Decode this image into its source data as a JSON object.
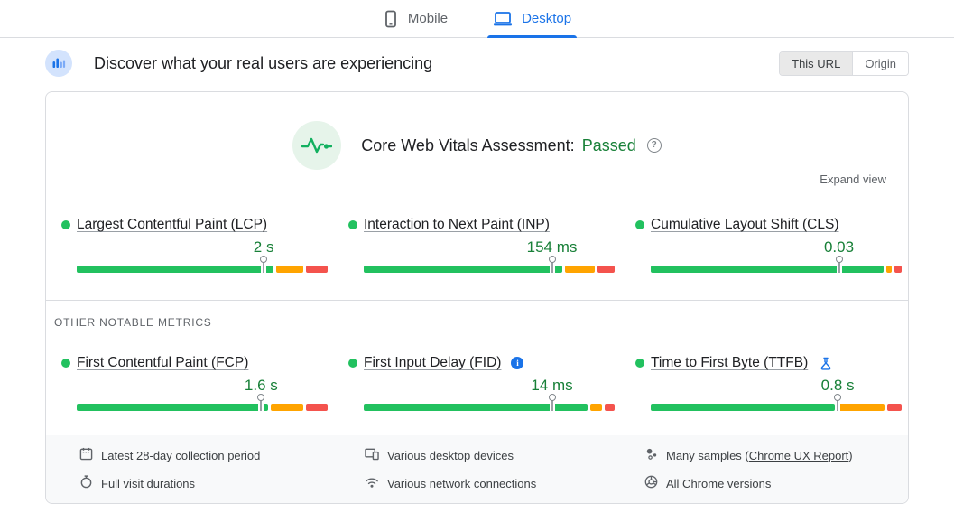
{
  "device_tabs": {
    "mobile_label": "Mobile",
    "desktop_label": "Desktop",
    "selected": "Desktop"
  },
  "header": {
    "title": "Discover what your real users are experiencing",
    "scope": {
      "this_url_label": "This URL",
      "origin_label": "Origin",
      "selected": "This URL"
    }
  },
  "assessment": {
    "label": "Core Web Vitals Assessment:",
    "status": "Passed"
  },
  "expand_view_label": "Expand view",
  "other_metrics_label": "OTHER NOTABLE METRICS",
  "vitals": {
    "core": [
      {
        "name": "Largest Contentful Paint (LCP)",
        "value": "2 s",
        "rating": "good",
        "distribution": {
          "good": 80,
          "needs_improvement": 11,
          "poor": 9
        },
        "p75_marker_pct": 74.5
      },
      {
        "name": "Interaction to Next Paint (INP)",
        "value": "154 ms",
        "rating": "good",
        "distribution": {
          "good": 81,
          "needs_improvement": 12,
          "poor": 7
        },
        "p75_marker_pct": 75
      },
      {
        "name": "Cumulative Layout Shift (CLS)",
        "value": "0.03",
        "rating": "good",
        "distribution": {
          "good": 95,
          "needs_improvement": 2,
          "poor": 3
        },
        "p75_marker_pct": 75
      }
    ],
    "other": [
      {
        "name": "First Contentful Paint (FCP)",
        "value": "1.6 s",
        "rating": "good",
        "distribution": {
          "good": 78,
          "needs_improvement": 13,
          "poor": 9
        },
        "p75_marker_pct": 73.5
      },
      {
        "name": "First Input Delay (FID)",
        "value": "14 ms",
        "rating": "good",
        "badge": "info",
        "distribution": {
          "good": 91,
          "needs_improvement": 5,
          "poor": 4
        },
        "p75_marker_pct": 75
      },
      {
        "name": "Time to First Byte (TTFB)",
        "value": "0.8 s",
        "rating": "good",
        "badge": "experimental",
        "distribution": {
          "good": 75,
          "needs_improvement": 19,
          "poor": 6
        },
        "p75_marker_pct": 74.5
      }
    ]
  },
  "footer": {
    "collection_period": "Latest 28-day collection period",
    "visit_durations": "Full visit durations",
    "devices": "Various desktop devices",
    "connections": "Various network connections",
    "samples_prefix": "Many samples (",
    "samples_link": "Chrome UX Report",
    "samples_suffix": ")",
    "chrome_versions": "All Chrome versions"
  },
  "colors": {
    "good": "#22c15f",
    "needs_improvement": "#ffa400",
    "poor": "#f4534d",
    "accent_blue": "#1a73e8",
    "passed_green": "#188038"
  }
}
